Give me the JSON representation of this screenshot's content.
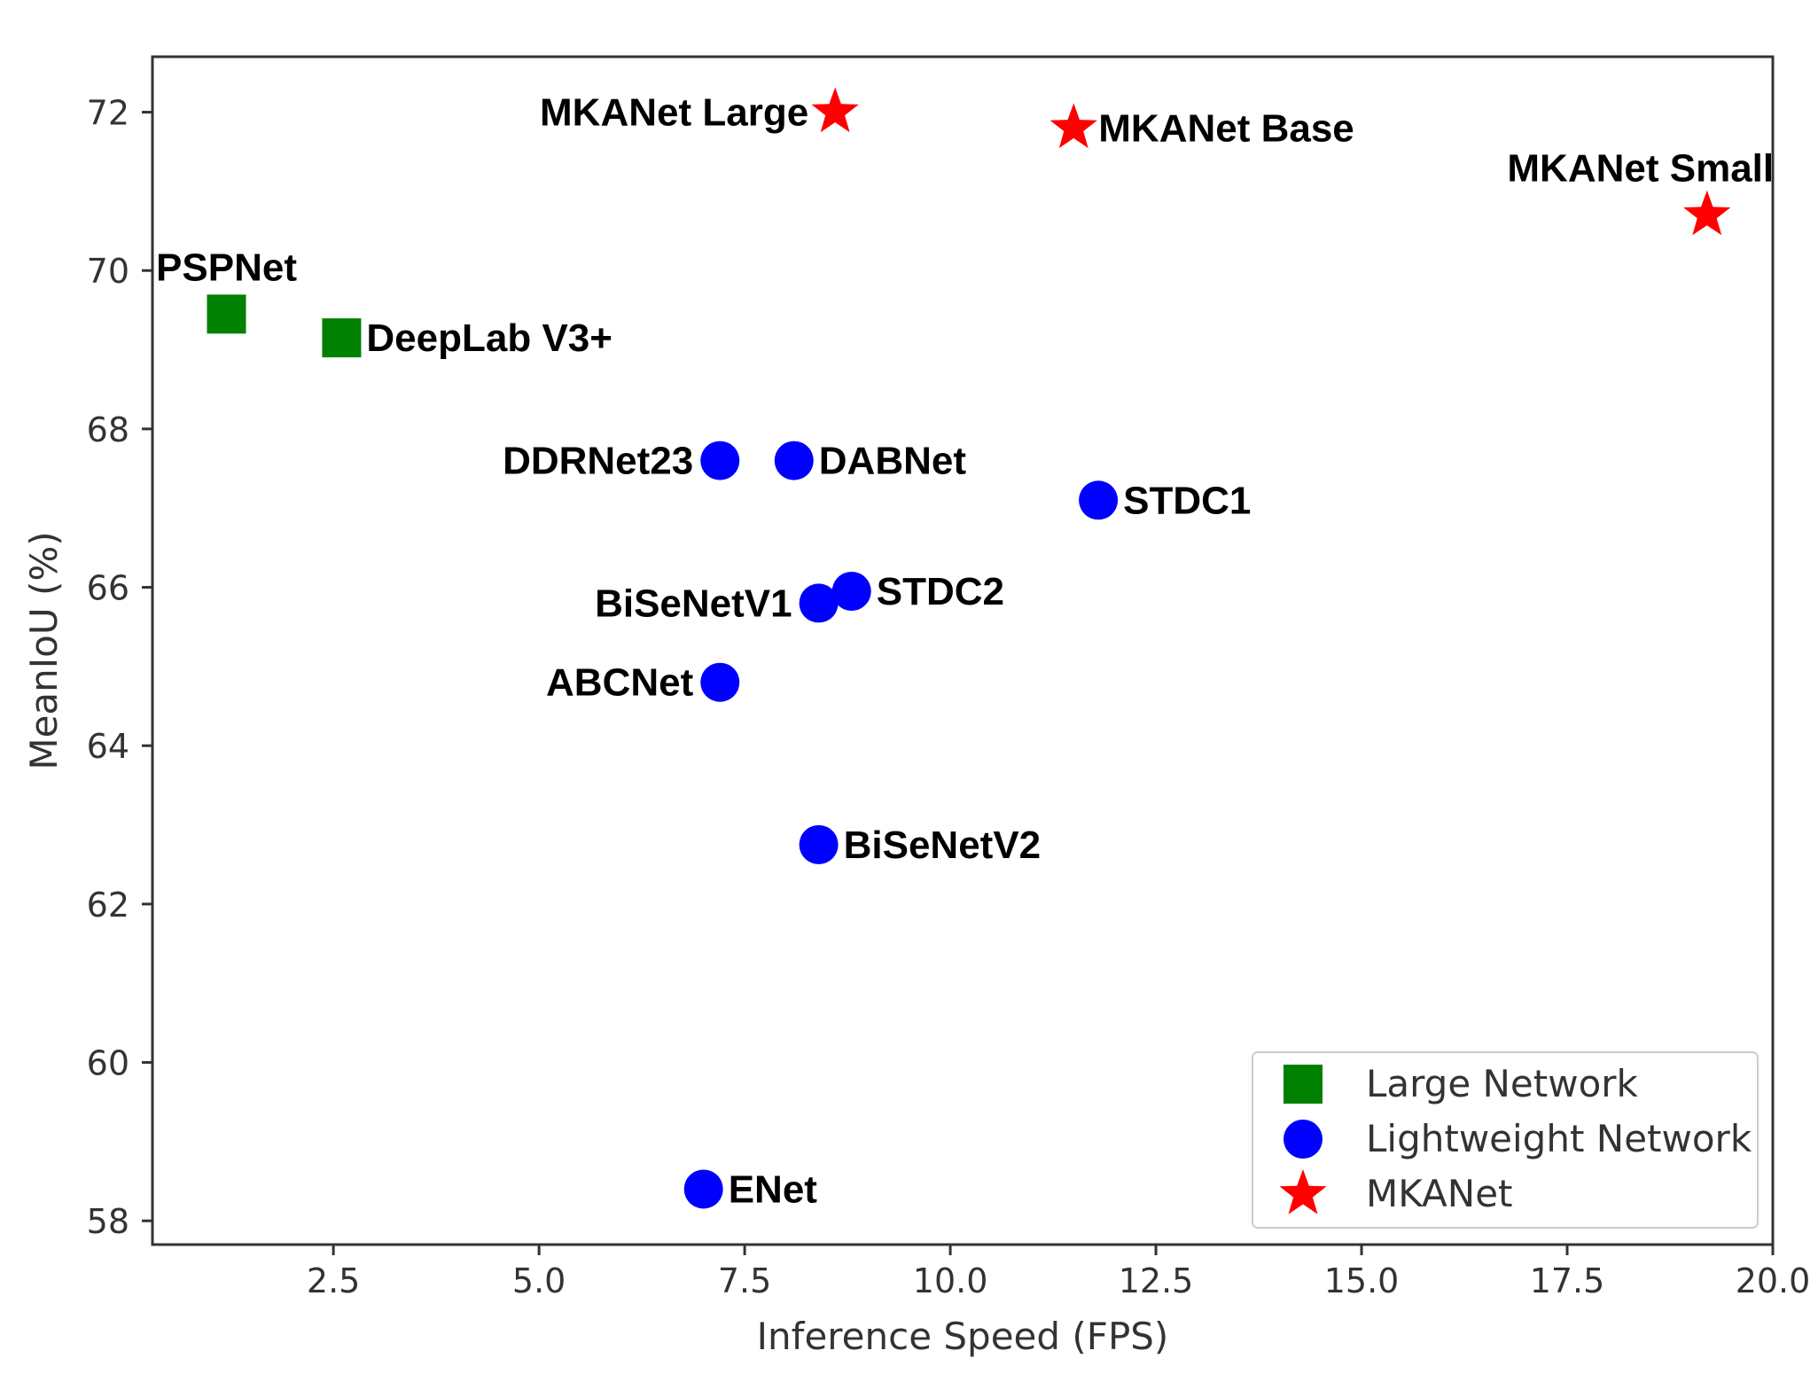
{
  "chart_data": {
    "type": "scatter",
    "title": "",
    "xlabel": "Inference Speed (FPS)",
    "ylabel": "MeanIoU (%)",
    "xlim": [
      0.3,
      20.0
    ],
    "ylim": [
      57.7,
      72.7
    ],
    "xticks": [
      "2.5",
      "5.0",
      "7.5",
      "10.0",
      "12.5",
      "15.0",
      "17.5",
      "20.0"
    ],
    "yticks": [
      "58",
      "60",
      "62",
      "64",
      "66",
      "68",
      "70",
      "72"
    ],
    "grid": false,
    "legend_position": "bottom-right",
    "series": [
      {
        "name": "Large Network",
        "marker": "square",
        "color": "#008000",
        "points": [
          {
            "label": "PSPNet",
            "x": 1.2,
            "y": 69.45,
            "label_pos": "above"
          },
          {
            "label": "DeepLab V3+",
            "x": 2.6,
            "y": 69.15,
            "label_pos": "right"
          }
        ]
      },
      {
        "name": "Lightweight Network",
        "marker": "circle",
        "color": "#0000ff",
        "points": [
          {
            "label": "DDRNet23",
            "x": 7.2,
            "y": 67.6,
            "label_pos": "left"
          },
          {
            "label": "DABNet",
            "x": 8.1,
            "y": 67.6,
            "label_pos": "right"
          },
          {
            "label": "STDC1",
            "x": 11.8,
            "y": 67.1,
            "label_pos": "right"
          },
          {
            "label": "STDC2",
            "x": 8.8,
            "y": 65.95,
            "label_pos": "right"
          },
          {
            "label": "BiSeNetV1",
            "x": 8.4,
            "y": 65.8,
            "label_pos": "left"
          },
          {
            "label": "ABCNet",
            "x": 7.2,
            "y": 64.8,
            "label_pos": "left"
          },
          {
            "label": "BiSeNetV2",
            "x": 8.4,
            "y": 62.75,
            "label_pos": "right"
          },
          {
            "label": "ENet",
            "x": 7.0,
            "y": 58.4,
            "label_pos": "right"
          }
        ]
      },
      {
        "name": "MKANet",
        "marker": "star",
        "color": "#ff0000",
        "points": [
          {
            "label": "MKANet Large",
            "x": 8.6,
            "y": 72.0,
            "label_pos": "left"
          },
          {
            "label": "MKANet Base",
            "x": 11.5,
            "y": 71.8,
            "label_pos": "right"
          },
          {
            "label": "MKANet Small",
            "x": 19.2,
            "y": 70.7,
            "label_pos": "above"
          }
        ]
      }
    ]
  }
}
